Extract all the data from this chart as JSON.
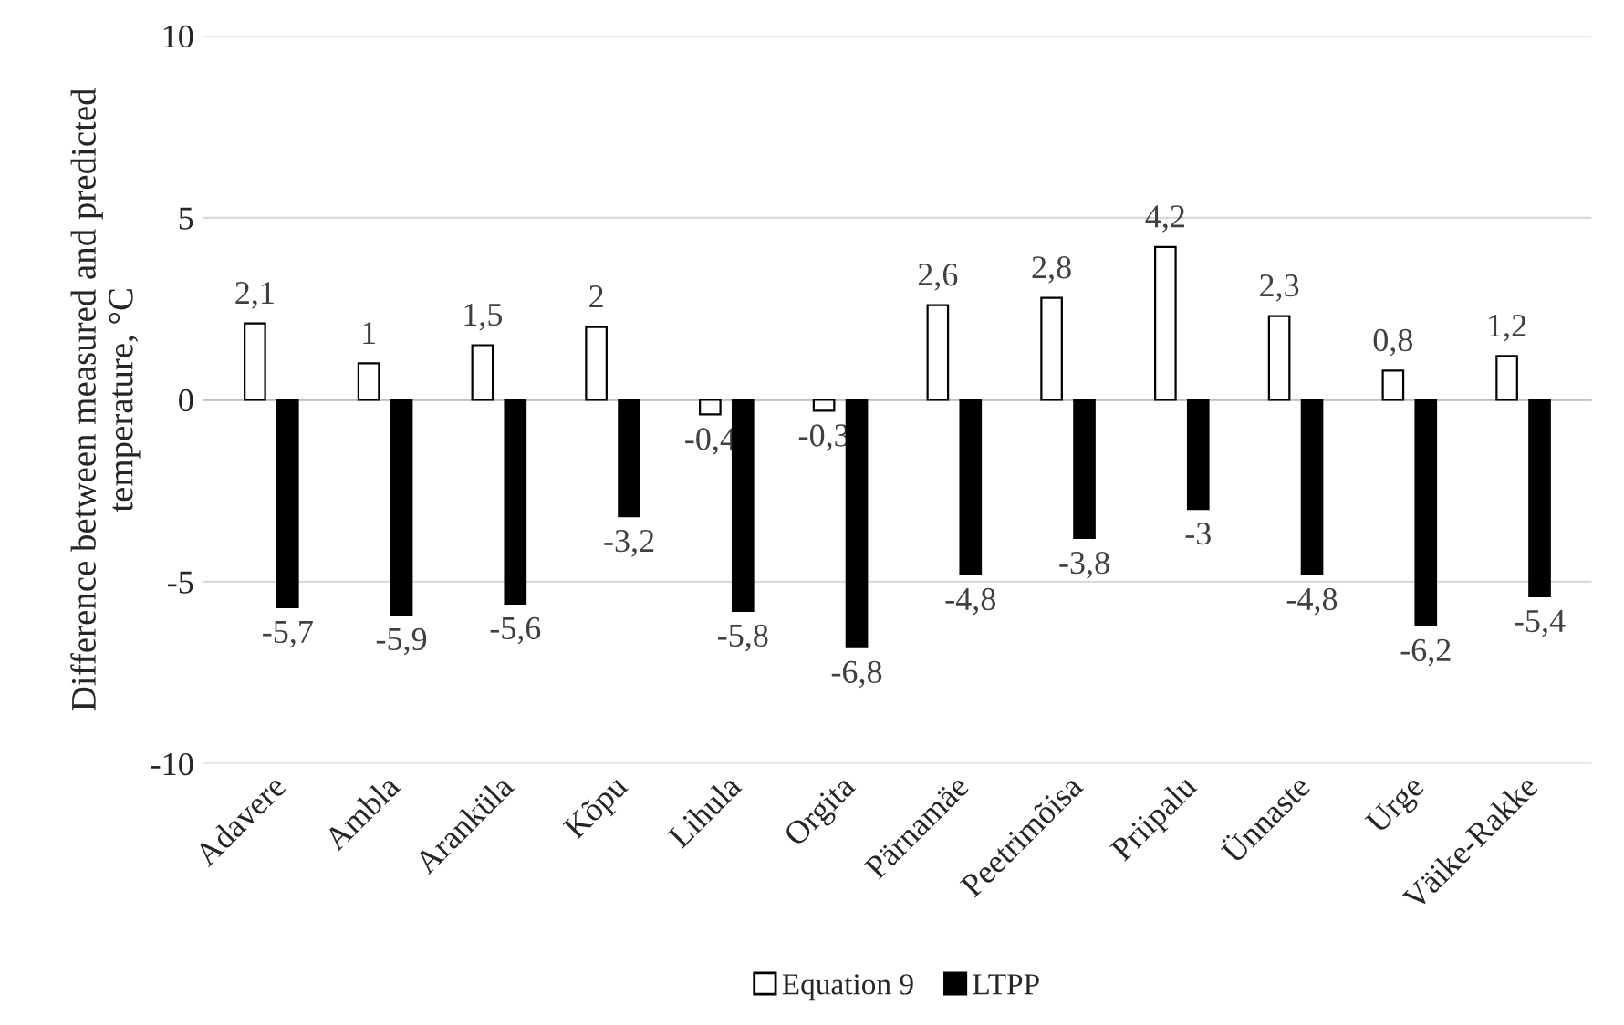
{
  "chart_data": {
    "type": "bar",
    "ylabel": "Difference between measured and predicted temperature, °C",
    "categories": [
      "Adavere",
      "Ambla",
      "Aranküla",
      "Kõpu",
      "Lihula",
      "Orgita",
      "Pärnamäe",
      "Peetrimõisa",
      "Priipalu",
      "Ünnaste",
      "Urge",
      "Väike-Rakke"
    ],
    "series": [
      {
        "name": "Equation 9",
        "color": "#ffffff",
        "values": [
          2.1,
          1,
          1.5,
          2,
          -0.4,
          -0.3,
          2.6,
          2.8,
          4.2,
          2.3,
          0.8,
          1.2
        ],
        "value_labels": [
          "2,1",
          "1",
          "1,5",
          "2",
          "-0,4",
          "-0,3",
          "2,6",
          "2,8",
          "4,2",
          "2,3",
          "0,8",
          "1,2"
        ]
      },
      {
        "name": "LTPP",
        "color": "#000000",
        "values": [
          -5.7,
          -5.9,
          -5.6,
          -3.2,
          -5.8,
          -6.8,
          -4.8,
          -3.8,
          -3,
          -4.8,
          -6.2,
          -5.4
        ],
        "value_labels": [
          "-5,7",
          "-5,9",
          "-5,6",
          "-3,2",
          "-5,8",
          "-6,8",
          "-4,8",
          "-3,8",
          "-3",
          "-4,8",
          "-6,2",
          "-5,4"
        ]
      }
    ],
    "ylim": [
      -10,
      10
    ],
    "yticks": [
      -10,
      -5,
      0,
      5,
      10
    ],
    "grid": "y",
    "legend": "bottom"
  }
}
